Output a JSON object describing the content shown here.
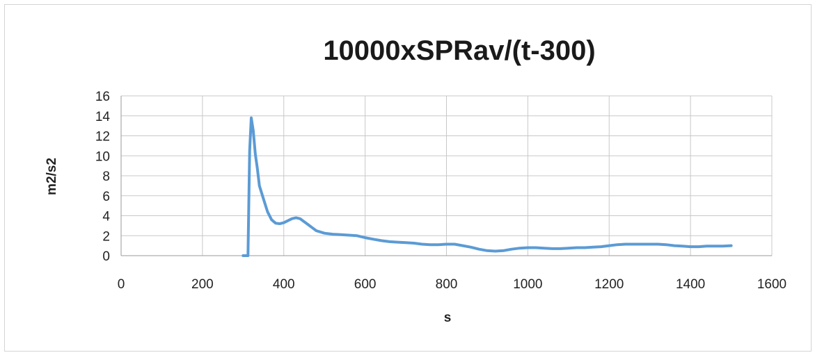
{
  "chart_data": {
    "type": "line",
    "title": "10000xSPRav/(t-300)",
    "xlabel": "s",
    "ylabel": "m2/s2",
    "xlim": [
      0,
      1600
    ],
    "ylim": [
      0,
      16
    ],
    "x_ticks": [
      0,
      200,
      400,
      600,
      800,
      1000,
      1200,
      1400,
      1600
    ],
    "y_ticks": [
      0,
      2,
      4,
      6,
      8,
      10,
      12,
      14,
      16
    ],
    "grid": true,
    "legend": "none",
    "series": [
      {
        "color": "#5b9bd5",
        "x": [
          300,
          310,
          312,
          316,
          320,
          325,
          330,
          335,
          340,
          350,
          360,
          370,
          380,
          390,
          400,
          410,
          420,
          430,
          440,
          450,
          460,
          470,
          480,
          500,
          520,
          540,
          560,
          580,
          600,
          620,
          640,
          660,
          680,
          700,
          720,
          740,
          760,
          780,
          800,
          820,
          840,
          860,
          880,
          900,
          920,
          940,
          960,
          980,
          1000,
          1020,
          1040,
          1060,
          1080,
          1100,
          1120,
          1140,
          1160,
          1180,
          1200,
          1220,
          1240,
          1260,
          1280,
          1300,
          1320,
          1340,
          1360,
          1380,
          1400,
          1420,
          1440,
          1460,
          1480,
          1500
        ],
        "y": [
          0,
          0,
          0,
          10.5,
          13.8,
          12.5,
          10.2,
          8.7,
          7.0,
          5.7,
          4.4,
          3.6,
          3.25,
          3.2,
          3.3,
          3.5,
          3.7,
          3.8,
          3.7,
          3.4,
          3.1,
          2.8,
          2.5,
          2.25,
          2.15,
          2.1,
          2.05,
          2.0,
          1.8,
          1.65,
          1.5,
          1.4,
          1.35,
          1.3,
          1.25,
          1.15,
          1.1,
          1.1,
          1.15,
          1.15,
          1.0,
          0.85,
          0.65,
          0.5,
          0.45,
          0.5,
          0.65,
          0.75,
          0.8,
          0.8,
          0.75,
          0.7,
          0.7,
          0.75,
          0.8,
          0.8,
          0.85,
          0.9,
          1.0,
          1.1,
          1.15,
          1.15,
          1.15,
          1.15,
          1.15,
          1.1,
          1.0,
          0.95,
          0.9,
          0.9,
          0.95,
          0.95,
          0.95,
          1.0
        ]
      }
    ]
  }
}
